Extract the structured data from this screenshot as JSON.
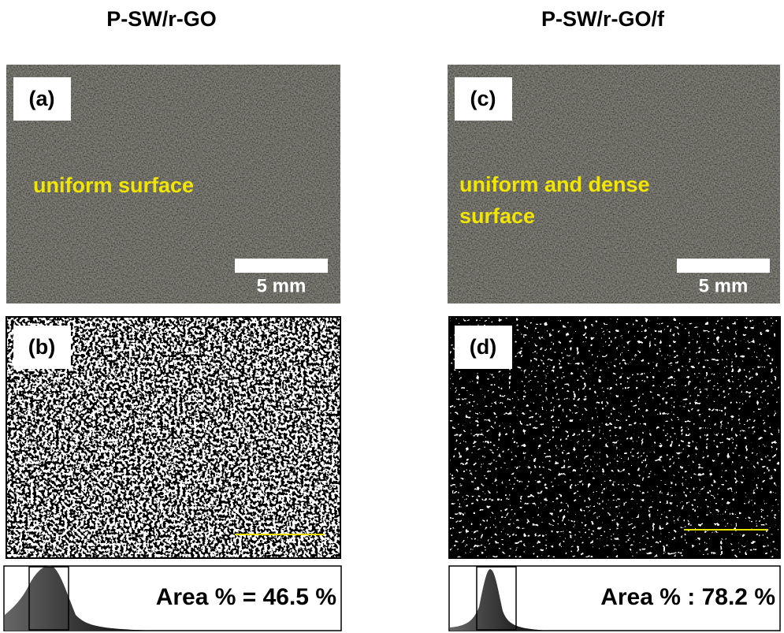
{
  "columns": [
    {
      "title": "P-SW/r-GO",
      "photo": {
        "label": "(a)",
        "annotation": [
          "uniform surface"
        ],
        "scale_bar": "5 mm"
      },
      "binary": {
        "label": "(b)"
      },
      "histogram": {
        "caption": "Area  % = 46.5 %"
      }
    },
    {
      "title": "P-SW/r-GO/f",
      "photo": {
        "label": "(c)",
        "annotation": [
          "uniform and dense",
          "surface"
        ],
        "scale_bar": "5 mm"
      },
      "binary": {
        "label": "(d)"
      },
      "histogram": {
        "caption": "Area % : 78.2 %"
      }
    }
  ]
}
